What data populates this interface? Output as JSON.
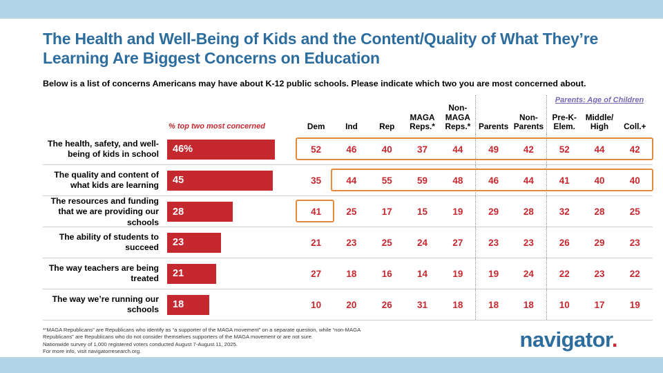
{
  "title": "The Health and Well-Being of Kids and the Content/Quality of What They’re Learning Are Biggest Concerns on Education",
  "subtitle": "Below is a list of concerns Americans may have about K-12 public schools. Please indicate which two you are most concerned about.",
  "bar_axis_label": "% top two most concerned",
  "group_header": "Parents: Age of Children",
  "columns": [
    "Dem",
    "Ind",
    "Rep",
    "MAGA\nReps.*",
    "Non-\nMAGA\nReps.*",
    "Parents",
    "Non-\nParents",
    "Pre-K-\nElem.",
    "Middle/\nHigh",
    "Coll.+"
  ],
  "chart_data": {
    "type": "bar",
    "note": "horizontal bar chart of % top two most concerned, with crosstab table by subgroup",
    "xlim": [
      0,
      50
    ],
    "rows": [
      {
        "label": "The health, safety, and well-being of kids in school",
        "value": 46,
        "value_label": "46%",
        "cells": [
          52,
          46,
          40,
          37,
          44,
          49,
          42,
          52,
          44,
          42
        ]
      },
      {
        "label": "The quality and content of what kids are learning",
        "value": 45,
        "value_label": "45",
        "cells": [
          35,
          44,
          55,
          59,
          48,
          46,
          44,
          41,
          40,
          40
        ]
      },
      {
        "label": "The resources and funding that we are providing our schools",
        "value": 28,
        "value_label": "28",
        "cells": [
          41,
          25,
          17,
          15,
          19,
          29,
          28,
          32,
          28,
          25
        ]
      },
      {
        "label": "The ability of students to succeed",
        "value": 23,
        "value_label": "23",
        "cells": [
          21,
          23,
          25,
          24,
          27,
          23,
          23,
          26,
          29,
          23
        ]
      },
      {
        "label": "The way teachers are being treated",
        "value": 21,
        "value_label": "21",
        "cells": [
          27,
          18,
          16,
          14,
          19,
          19,
          24,
          22,
          23,
          22
        ]
      },
      {
        "label": "The way we’re running our schools",
        "value": 18,
        "value_label": "18",
        "cells": [
          10,
          20,
          26,
          31,
          18,
          18,
          18,
          10,
          17,
          19
        ]
      }
    ],
    "highlights": [
      {
        "row": 0,
        "start_col": 0,
        "end_col": 9
      },
      {
        "row": 1,
        "start_col": 1,
        "end_col": 9
      },
      {
        "row": 2,
        "start_col": 0,
        "end_col": 0
      }
    ],
    "accent_colors": {
      "bar_red": "#c5282f",
      "highlight_orange": "#e2893b",
      "title_blue": "#2d6d9e",
      "band_blue": "#b2d6e8",
      "group_header_purple": "#7668b2"
    }
  },
  "footnote": "*“MAGA Republicans” are Republicans who identify as “a supporter of the MAGA movement” on a separate question, while “non-MAGA\nRepublicans” are Republicans who do not consider themselves supporters of the MAGA movement or are not sure.\nNationwide survey of 1,000 registered voters conducted August 7-August 11, 2025.\nFor more info, visit navigatorresearch.org.",
  "logo": {
    "text": "navigator",
    "dot": "."
  }
}
